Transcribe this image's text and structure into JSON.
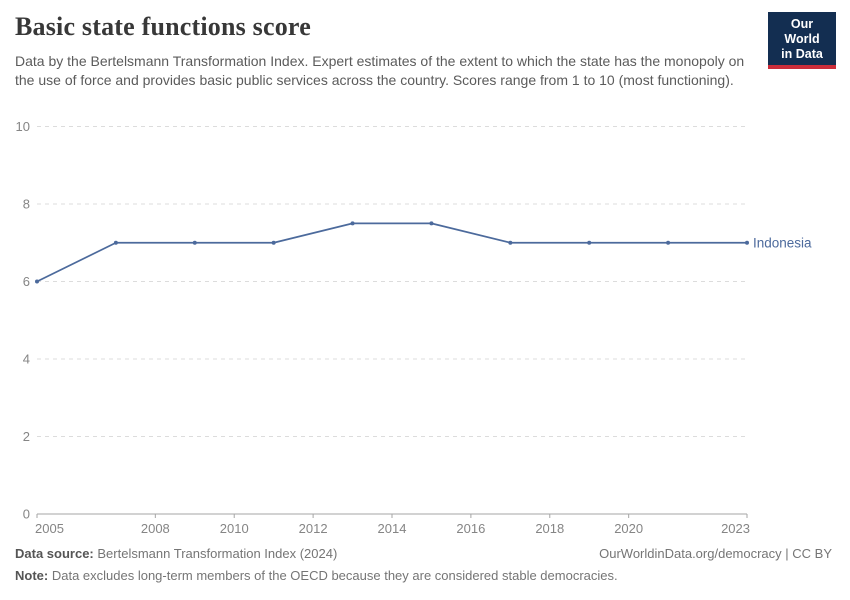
{
  "header": {
    "title": "Basic state functions score",
    "subtitle": "Data by the Bertelsmann Transformation Index. Expert estimates of the extent to which the state has the monopoly on the use of force and provides basic public services across the country. Scores range from 1 to 10 (most functioning)."
  },
  "logo": {
    "line1": "Our World",
    "line2": "in Data",
    "bg_color": "#132e51",
    "bar_color": "#cb2d3a"
  },
  "chart_data": {
    "type": "line",
    "title": "Basic state functions score",
    "x": [
      2005,
      2007,
      2009,
      2011,
      2013,
      2015,
      2017,
      2019,
      2021,
      2023
    ],
    "series": [
      {
        "name": "Indonesia",
        "color": "#4c6a9c",
        "values": [
          6,
          7,
          7,
          7,
          7.5,
          7.5,
          7,
          7,
          7,
          7
        ]
      }
    ],
    "xlim": [
      2005,
      2023
    ],
    "ylim": [
      0,
      10
    ],
    "x_ticks": [
      2005,
      2008,
      2010,
      2012,
      2014,
      2016,
      2018,
      2020,
      2023
    ],
    "y_ticks": [
      0,
      2,
      4,
      6,
      8,
      10
    ],
    "grid": true,
    "legend_position": "end-of-line"
  },
  "colors": {
    "line": "#4c6a9c",
    "grid": "#dcdcdc",
    "axis": "#a5a5a5",
    "tick_label": "#858585"
  },
  "footer": {
    "source_label": "Data source:",
    "source_text": "Bertelsmann Transformation Index (2024)",
    "link": "OurWorldinData.org/democracy | CC BY",
    "note_label": "Note:",
    "note_text": "Data excludes long-term members of the OECD because they are considered stable democracies."
  }
}
